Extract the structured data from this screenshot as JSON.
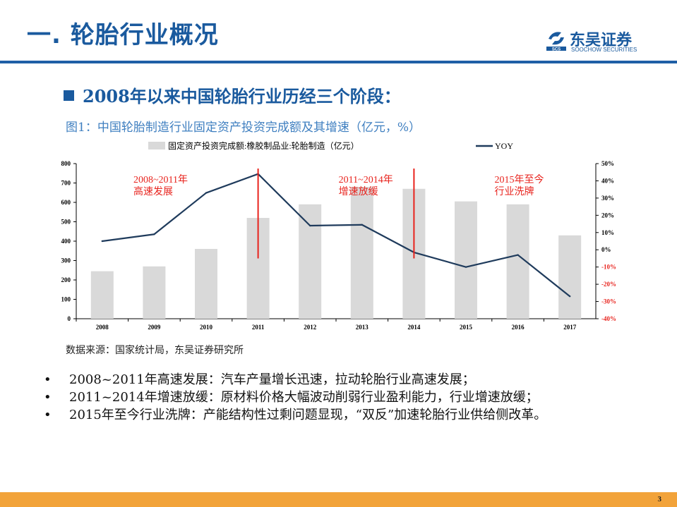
{
  "slide": {
    "title": "一. 轮胎行业概况",
    "heading": "2008年以来中国轮胎行业历经三个阶段：",
    "figure_title": "图1：中国轮胎制造行业固定资产投资完成额及其增速（亿元，%）",
    "source": "数据来源：国家统计局，东吴证券研究所",
    "page_number": "3"
  },
  "logo": {
    "name": "东吴证券",
    "english": "SOOCHOW SECURITIES",
    "mark": "SCS"
  },
  "bullets": [
    {
      "marker": "•",
      "text": "2008~2011年高速发展：汽车产量增长迅速，拉动轮胎行业高速发展；"
    },
    {
      "marker": "•",
      "text": "2011~2014年增速放缓：原材料价格大幅波动削弱行业盈利能力，行业增速放缓；"
    },
    {
      "marker": "•",
      "text": "2015年至今行业洗牌：产能结构性过剩问题显现，“双反”加速轮胎行业供给侧改革。"
    }
  ],
  "chart_data": {
    "type": "bar",
    "categories": [
      "2008",
      "2009",
      "2010",
      "2011",
      "2012",
      "2013",
      "2014",
      "2015",
      "2016",
      "2017"
    ],
    "series": [
      {
        "name": "固定资产投资完成额:橡胶制品业:轮胎制造（亿元）",
        "type": "bar",
        "axis": "left",
        "values": [
          245,
          270,
          360,
          520,
          590,
          680,
          670,
          605,
          590,
          430
        ]
      },
      {
        "name": "YOY",
        "type": "line",
        "axis": "right",
        "values": [
          5,
          9,
          33,
          44,
          14,
          14.5,
          -1.5,
          -10,
          -3,
          -27
        ]
      }
    ],
    "y_left": {
      "ylim": [
        0,
        800
      ],
      "ticks": [
        "0",
        "100",
        "200",
        "300",
        "400",
        "500",
        "600",
        "700",
        "800"
      ]
    },
    "y_right": {
      "ylim": [
        -40,
        50
      ],
      "ticks": [
        "-40%",
        "-30%",
        "-20%",
        "-10%",
        "0%",
        "10%",
        "20%",
        "30%",
        "40%",
        "50%"
      ]
    },
    "legend_position": "top",
    "annotations": [
      {
        "lines": [
          "2008~2011年",
          "高速发展"
        ]
      },
      {
        "lines": [
          "2011~2014年",
          "增速放缓"
        ]
      },
      {
        "lines": [
          "2015年至今",
          "行业洗牌"
        ]
      }
    ],
    "phase_dividers": [
      "2011",
      "2014"
    ],
    "colors": {
      "bar": "#d9d9d9",
      "line": "#1f3b5c",
      "annotation": "#e8231d",
      "negative_tick": "#e8231d",
      "axis": "#000000"
    }
  }
}
